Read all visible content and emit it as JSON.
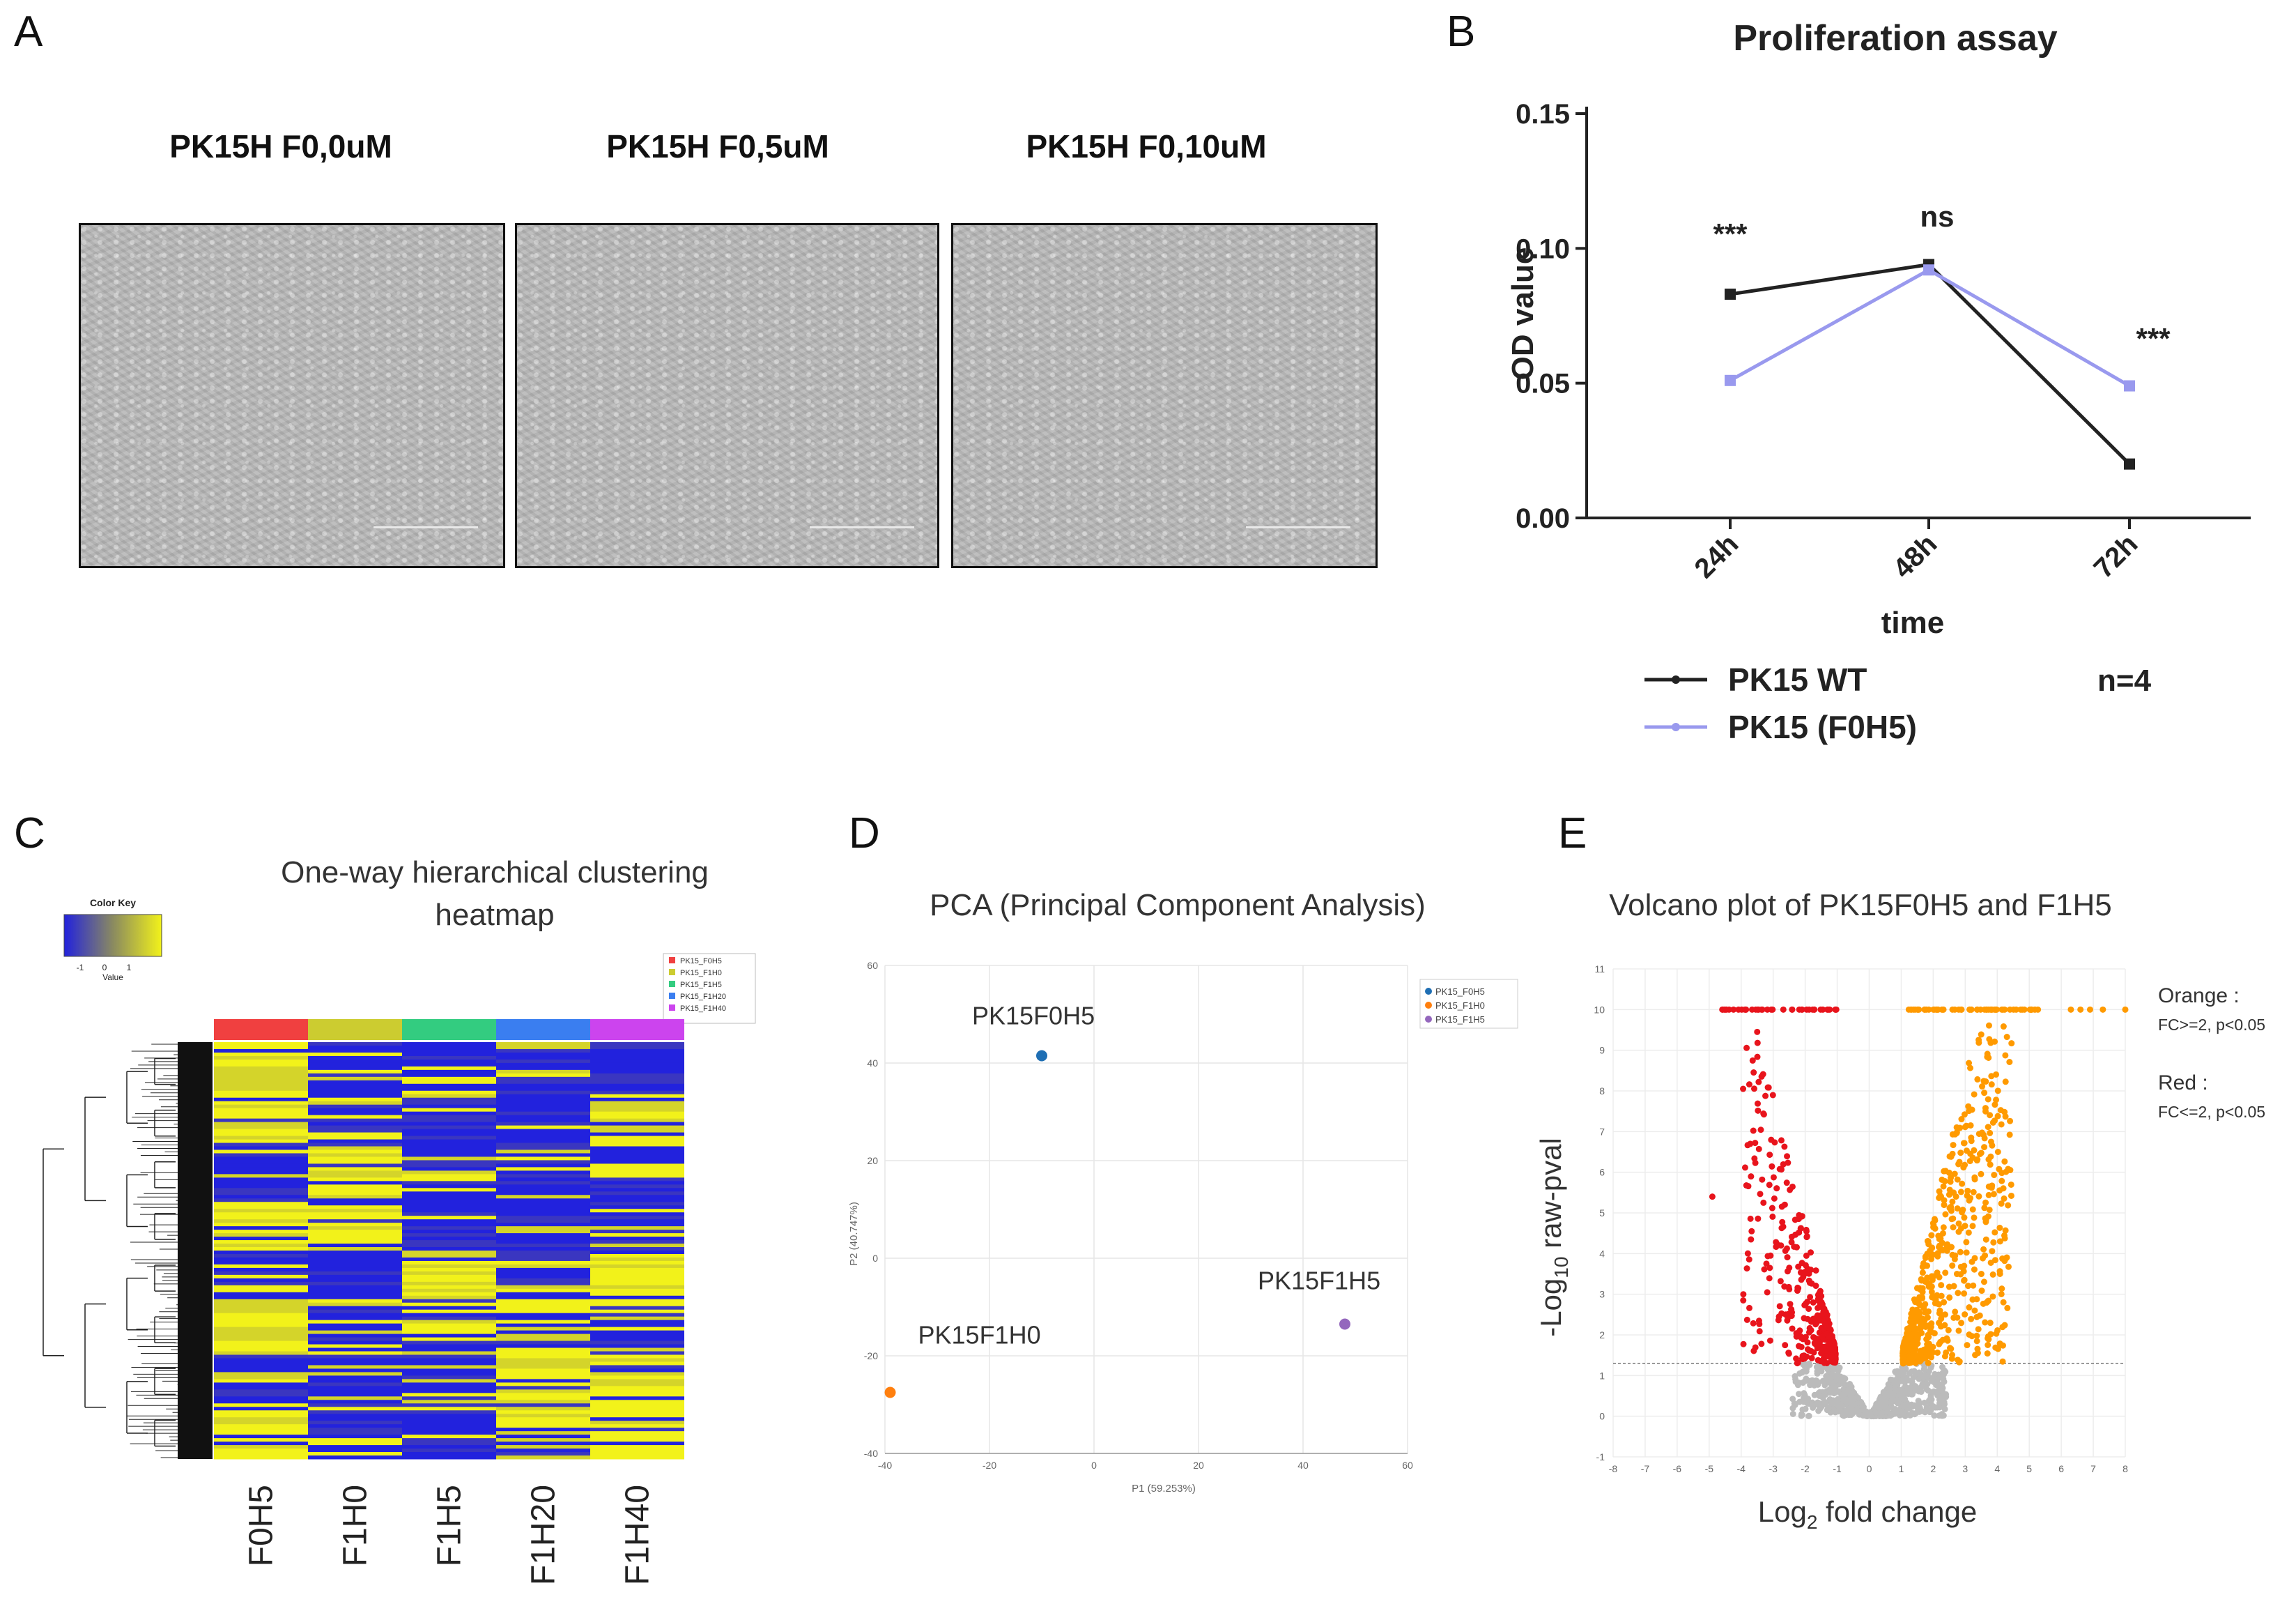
{
  "panels": {
    "a": "A",
    "b": "B",
    "c": "C",
    "d": "D",
    "e": "E"
  },
  "microscopy": {
    "labels": [
      "PK15H F0,0uM",
      "PK15H F0,5uM",
      "PK15H F0,10uM"
    ]
  },
  "chart_data": [
    {
      "id": "B",
      "type": "line",
      "title": "Proliferation assay",
      "xlabel": "time",
      "ylabel": "OD value",
      "categories": [
        "24h",
        "48h",
        "72h"
      ],
      "ylim": [
        0,
        0.15
      ],
      "yticks": [
        "0.00",
        "0.05",
        "0.10",
        "0.15"
      ],
      "series": [
        {
          "name": "PK15 WT",
          "color": "#222222",
          "values": [
            0.083,
            0.094,
            0.02
          ]
        },
        {
          "name": "PK15 (F0H5)",
          "color": "#9999ee",
          "values": [
            0.051,
            0.092,
            0.049
          ]
        }
      ],
      "annotations": [
        "***",
        "ns",
        "***"
      ],
      "n_label": "n=4"
    },
    {
      "id": "C",
      "type": "heatmap",
      "title_line1": "One-way hierarchical clustering",
      "title_line2": "heatmap",
      "color_key_title": "Color Key",
      "color_key_ticks": [
        "-1",
        "0",
        "1"
      ],
      "color_key_label": "Value",
      "colors": {
        "low": "#2222dd",
        "mid": "#8a8a60",
        "high": "#f2f21a"
      },
      "columns": [
        "F0H5",
        "F1H0",
        "F1H5",
        "F1H20",
        "F1H40"
      ],
      "column_colors": [
        "#f04040",
        "#cccc30",
        "#33cc80",
        "#3a7ef0",
        "#cc44ee"
      ],
      "legend": [
        "PK15_F0H5",
        "PK15_F1H0",
        "PK15_F1H5",
        "PK15_F1H20",
        "PK15_F1H40"
      ],
      "blocks": [
        [
          1,
          0,
          0,
          0,
          0
        ],
        [
          1,
          0,
          0,
          0,
          1
        ],
        [
          0,
          1,
          0,
          0,
          0
        ],
        [
          1,
          1,
          0,
          0,
          0
        ],
        [
          0,
          0,
          1,
          0,
          1
        ],
        [
          1,
          0,
          1,
          1,
          0
        ],
        [
          0,
          0,
          0,
          1,
          1
        ],
        [
          1,
          0,
          0,
          1,
          1
        ]
      ]
    },
    {
      "id": "D",
      "type": "scatter",
      "title": "PCA (Principal Component Analysis)",
      "xlabel": "P1 (59.253%)",
      "ylabel": "P2 (40.747%)",
      "xlim": [
        -40,
        60
      ],
      "ylim": [
        -40,
        60
      ],
      "xticks": [
        -40,
        -20,
        0,
        20,
        40,
        60
      ],
      "yticks": [
        -40,
        -20,
        0,
        20,
        40,
        60
      ],
      "points": [
        {
          "name": "PK15_F0H5",
          "label": "PK15F0H5",
          "x": -10,
          "y": 41.5,
          "color": "#1f6fb4"
        },
        {
          "name": "PK15_F1H0",
          "label": "PK15F1H0",
          "x": -39,
          "y": -27.5,
          "color": "#ff7f0e"
        },
        {
          "name": "PK15_F1H5",
          "label": "PK15F1H5",
          "x": 48,
          "y": -13.5,
          "color": "#9467bd"
        }
      ]
    },
    {
      "id": "E",
      "type": "scatter",
      "title": "Volcano plot of PK15F0H5 and F1H5",
      "xlabel": "Log2 fold change",
      "ylabel": "-Log10 raw-pval",
      "xlim": [
        -8,
        8
      ],
      "ylim": [
        -1,
        11
      ],
      "xticks": [
        -8,
        -7,
        -6,
        -5,
        -4,
        -3,
        -2,
        -1,
        0,
        1,
        2,
        3,
        4,
        5,
        6,
        7,
        8
      ],
      "yticks": [
        -1,
        0,
        1,
        2,
        3,
        4,
        5,
        6,
        7,
        8,
        9,
        10,
        11
      ],
      "threshold_y": 1.3,
      "colors": {
        "up": "#ff9a00",
        "down": "#e8141c",
        "ns": "#bbbbbb"
      },
      "legend": {
        "orange_title": "Orange :",
        "orange_desc": "FC>=2, p<0.05",
        "red_title": "Red :",
        "red_desc": "FC<=2, p<0.05"
      }
    }
  ]
}
